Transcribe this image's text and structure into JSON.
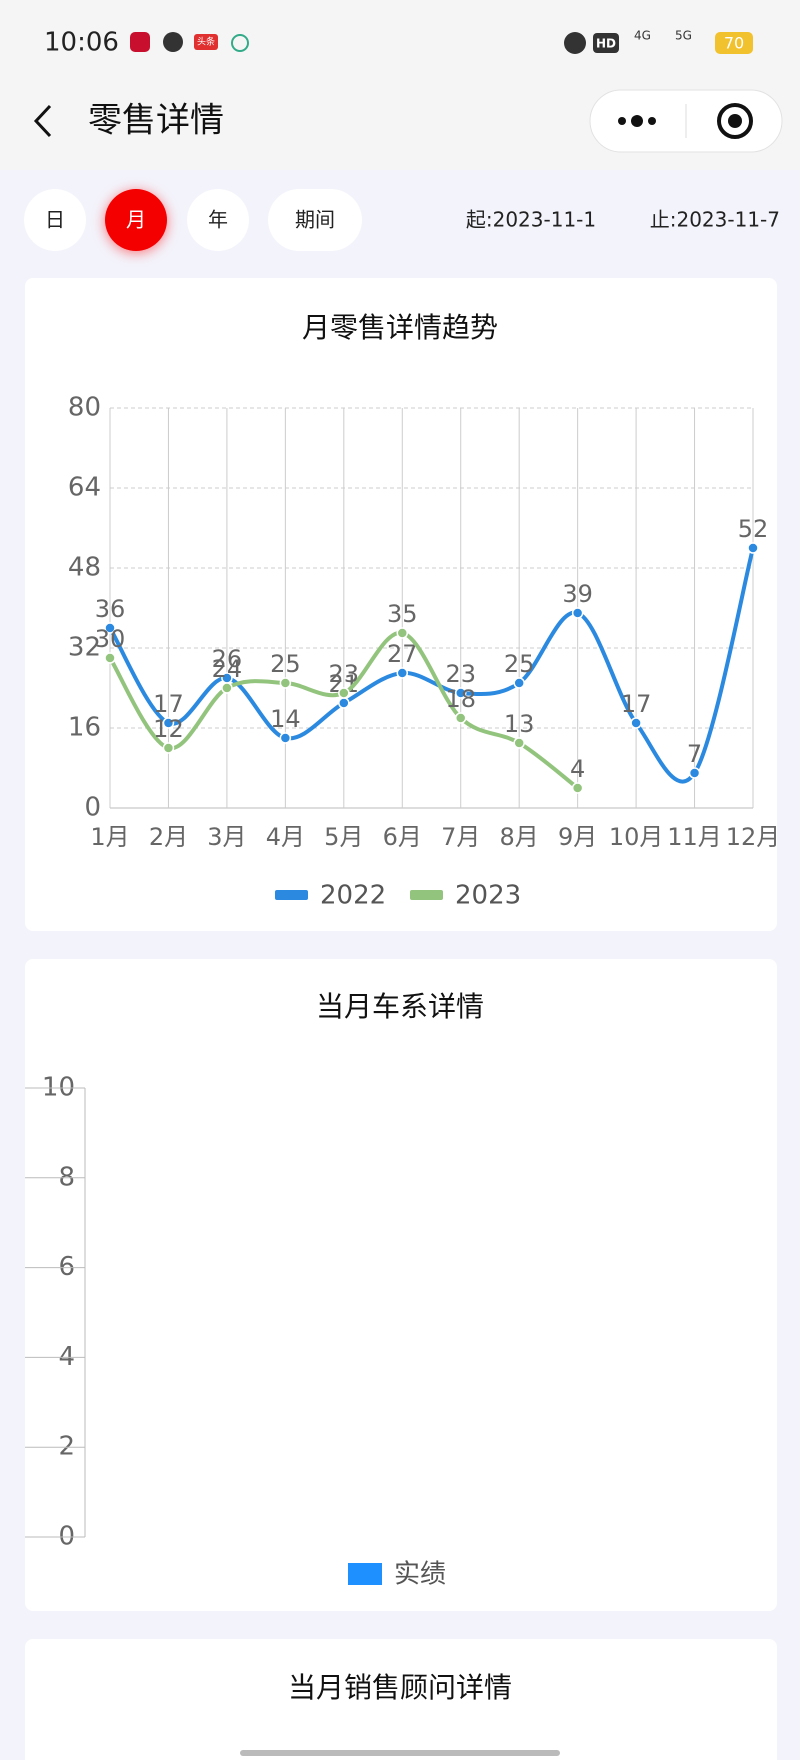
{
  "status_bar": {
    "time": "10:06",
    "app_icon_text": "头条",
    "network": [
      "HD",
      "4G",
      "5G"
    ],
    "battery": "70"
  },
  "header": {
    "title": "零售详情"
  },
  "tabs": [
    "日",
    "月",
    "年",
    "期间"
  ],
  "date_range": {
    "start": "起:2023-11-1",
    "end": "止:2023-11-7"
  },
  "chart_data": [
    {
      "type": "line",
      "title": "月零售详情趋势",
      "categories": [
        "1月",
        "2月",
        "3月",
        "4月",
        "5月",
        "6月",
        "7月",
        "8月",
        "9月",
        "10月",
        "11月",
        "12月"
      ],
      "series": [
        {
          "name": "2022",
          "color": "#2b8ae0",
          "values": [
            36,
            17,
            26,
            14,
            21,
            27,
            23,
            25,
            39,
            17,
            7,
            52
          ]
        },
        {
          "name": "2023",
          "color": "#93c47d",
          "values": [
            30,
            12,
            24,
            25,
            23,
            35,
            18,
            13,
            4,
            null,
            null,
            null
          ]
        }
      ],
      "ylim": [
        0,
        80
      ],
      "yticks": [
        0,
        16,
        32,
        48,
        64,
        80
      ],
      "grid": true,
      "legend": "bottom"
    },
    {
      "type": "bar",
      "title": "当月车系详情",
      "categories": [],
      "series": [
        {
          "name": "实绩",
          "color": "#1e90ff",
          "values": []
        }
      ],
      "ylim": [
        0,
        10
      ],
      "yticks": [
        0,
        2,
        4,
        6,
        8,
        10
      ],
      "legend": "bottom"
    }
  ],
  "section3": {
    "title": "当月销售顾问详情"
  }
}
